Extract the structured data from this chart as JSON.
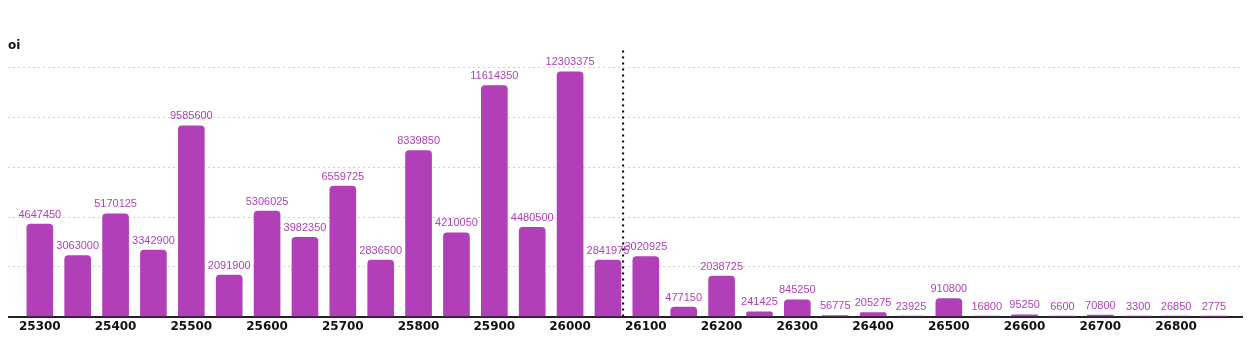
{
  "chart_data": {
    "type": "bar",
    "ylabel": "oi",
    "x": [
      25300,
      25350,
      25400,
      25450,
      25500,
      25550,
      25600,
      25650,
      25700,
      25750,
      25800,
      25850,
      25900,
      25950,
      26000,
      26050,
      26100,
      26150,
      26200,
      26250,
      26300,
      26350,
      26400,
      26450,
      26500,
      26550,
      26600,
      26650,
      26700,
      26750,
      26800,
      26850
    ],
    "values": [
      4647450,
      3063000,
      5170125,
      3342900,
      9585600,
      2091900,
      5306025,
      3982350,
      6559725,
      2836500,
      8339850,
      4210050,
      11614350,
      4480500,
      12303375,
      2841975,
      3020925,
      477150,
      2038725,
      241425,
      845250,
      56775,
      205275,
      23925,
      910800,
      16800,
      95250,
      6600,
      70800,
      3300,
      26850,
      2775
    ],
    "color": "#b03fb8",
    "data_labels": true,
    "xlim": [
      25258,
      26887
    ],
    "xticks": [
      25300,
      25400,
      25500,
      25600,
      25700,
      25800,
      25900,
      26000,
      26100,
      26200,
      26300,
      26400,
      26500,
      26600,
      26700,
      26800
    ],
    "yticks": [
      {
        "value": 0,
        "label": null
      },
      {
        "value": 2500000,
        "label": null
      },
      {
        "value": 5000000,
        "label": null
      },
      {
        "value": 7500000,
        "label": null
      },
      {
        "value": 10000000,
        "label": null
      },
      {
        "value": 12500000,
        "label": null
      }
    ],
    "tick_labels": "x",
    "grid": "y",
    "legend": false,
    "ref_lines": [
      {
        "axis": "x",
        "value": 26070,
        "label": null,
        "color": "#000000",
        "line_style": "dotted"
      }
    ]
  }
}
